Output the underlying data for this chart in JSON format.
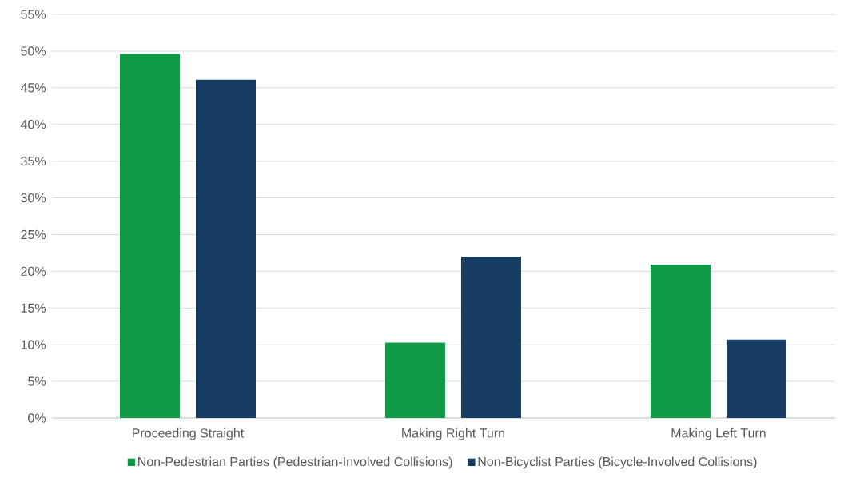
{
  "chart_data": {
    "type": "bar",
    "categories": [
      "Proceeding Straight",
      "Making Right Turn",
      "Making Left Turn"
    ],
    "series": [
      {
        "name": "Non-Pedestrian Parties (Pedestrian-Involved Collisions)",
        "color": "#109a48",
        "values": [
          49.6,
          10.3,
          20.9
        ]
      },
      {
        "name": "Non-Bicyclist Parties (Bicycle-Involved Collisions)",
        "color": "#163d64",
        "values": [
          46.1,
          22.0,
          10.7
        ]
      }
    ],
    "ylim": [
      0,
      55
    ],
    "yticks": [
      {
        "value": 0,
        "label": "0%"
      },
      {
        "value": 5,
        "label": "5%"
      },
      {
        "value": 10,
        "label": "10%"
      },
      {
        "value": 15,
        "label": "15%"
      },
      {
        "value": 20,
        "label": "20%"
      },
      {
        "value": 25,
        "label": "25%"
      },
      {
        "value": 30,
        "label": "30%"
      },
      {
        "value": 35,
        "label": "35%"
      },
      {
        "value": 40,
        "label": "40%"
      },
      {
        "value": 45,
        "label": "45%"
      },
      {
        "value": 50,
        "label": "50%"
      },
      {
        "value": 55,
        "label": "55%"
      }
    ],
    "grid": "y",
    "legend": "bottom"
  }
}
